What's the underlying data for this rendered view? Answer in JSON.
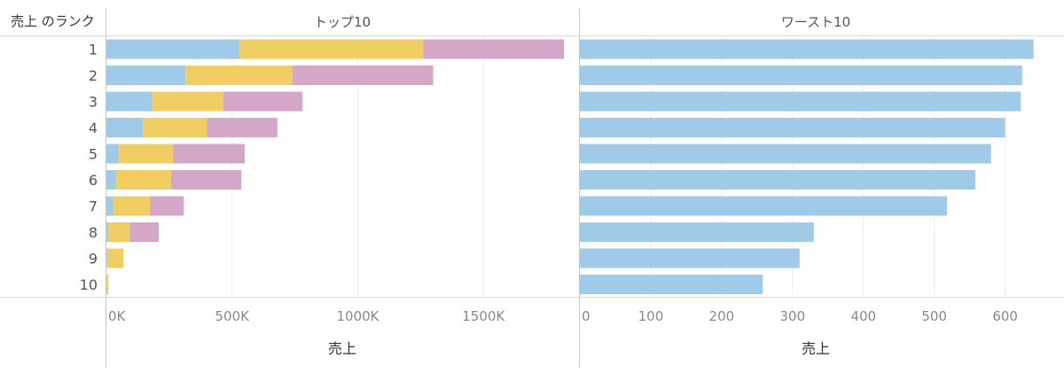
{
  "row_header": "売上 のランク",
  "chart_data": [
    {
      "type": "bar",
      "stacked": true,
      "orientation": "horizontal",
      "title": "トップ10",
      "xlabel": "売上",
      "categories": [
        "1",
        "2",
        "3",
        "4",
        "5",
        "6",
        "7",
        "8",
        "9",
        "10"
      ],
      "xlim": [
        0,
        1880000
      ],
      "xticks": [
        0,
        500000,
        1000000,
        1500000
      ],
      "xtick_labels": [
        "0K",
        "500K",
        "1000K",
        "1500K"
      ],
      "grid": true,
      "series": [
        {
          "color": "#a0cbe8",
          "values": [
            530000,
            315000,
            180000,
            145000,
            50000,
            37000,
            28000,
            8000,
            3000,
            0
          ]
        },
        {
          "color": "#f1ce63",
          "values": [
            730000,
            425000,
            285000,
            255000,
            215000,
            220000,
            145000,
            85000,
            65000,
            8000
          ]
        },
        {
          "color": "#d4a6c8",
          "values": [
            560000,
            560000,
            315000,
            280000,
            285000,
            280000,
            135000,
            115000,
            0,
            0
          ]
        }
      ]
    },
    {
      "type": "bar",
      "orientation": "horizontal",
      "title": "ワースト10",
      "xlabel": "売上",
      "categories": [
        "1",
        "2",
        "3",
        "4",
        "5",
        "6",
        "7",
        "8",
        "9",
        "10"
      ],
      "xlim": [
        0,
        668
      ],
      "xticks": [
        0,
        100,
        200,
        300,
        400,
        500,
        600
      ],
      "xtick_labels": [
        "0",
        "100",
        "200",
        "300",
        "400",
        "500",
        "600"
      ],
      "grid": true,
      "series": [
        {
          "color": "#a0cbe8",
          "values": [
            640,
            624,
            622,
            600,
            580,
            558,
            518,
            330,
            310,
            258
          ]
        }
      ]
    }
  ]
}
